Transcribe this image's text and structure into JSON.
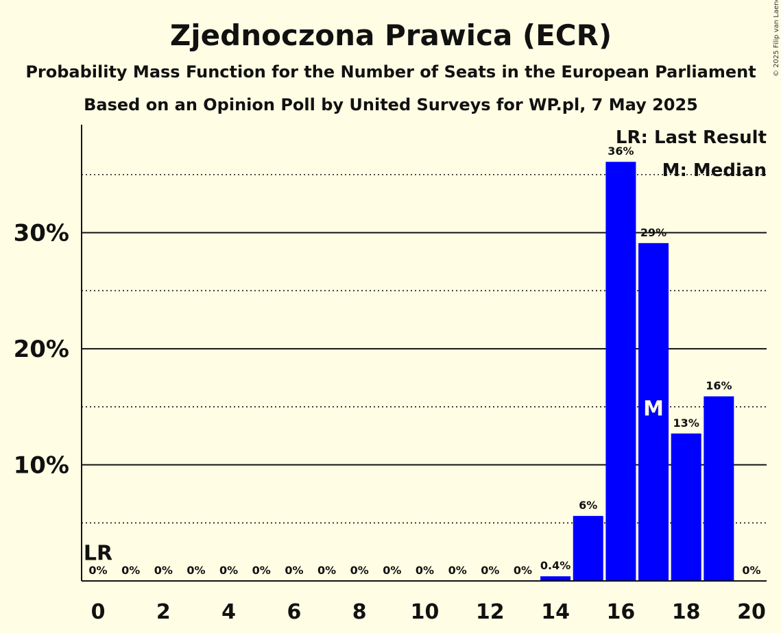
{
  "copyright": "© 2025 Filip van Laenen",
  "chart_data": {
    "type": "bar",
    "title": "Zjednoczona Prawica (ECR)",
    "subtitle": "Probability Mass Function for the Number of Seats in the European Parliament",
    "subtitle2": "Based on an Opinion Poll by United Surveys for WP.pl, 7 May 2025",
    "x": [
      0,
      1,
      2,
      3,
      4,
      5,
      6,
      7,
      8,
      9,
      10,
      11,
      12,
      13,
      14,
      15,
      16,
      17,
      18,
      19,
      20
    ],
    "values": [
      0,
      0,
      0,
      0,
      0,
      0,
      0,
      0,
      0,
      0,
      0,
      0,
      0,
      0,
      0.4,
      5.6,
      36.1,
      29.1,
      12.7,
      15.9,
      0
    ],
    "data_labels": [
      "0%",
      "0%",
      "0%",
      "0%",
      "0%",
      "0%",
      "0%",
      "0%",
      "0%",
      "0%",
      "0%",
      "0%",
      "0%",
      "0%",
      "0.4%",
      "6%",
      "36%",
      "29%",
      "13%",
      "16%",
      "0%"
    ],
    "xtick_labels": [
      "0",
      "2",
      "4",
      "6",
      "8",
      "10",
      "12",
      "14",
      "16",
      "18",
      "20"
    ],
    "ytick_labels": [
      "10%",
      "20%",
      "30%"
    ],
    "ylim": [
      0,
      39.3
    ],
    "solid_grid": [
      10,
      20,
      30
    ],
    "dotted_grid": [
      5,
      15,
      25,
      35
    ],
    "bar_color": "#0000ff",
    "last_result_seat": 0,
    "last_result_mark": "LR",
    "median_seat": 17,
    "median_mark": "M",
    "legend": [
      "LR: Last Result",
      "M: Median"
    ],
    "legend_position": "top-right"
  }
}
